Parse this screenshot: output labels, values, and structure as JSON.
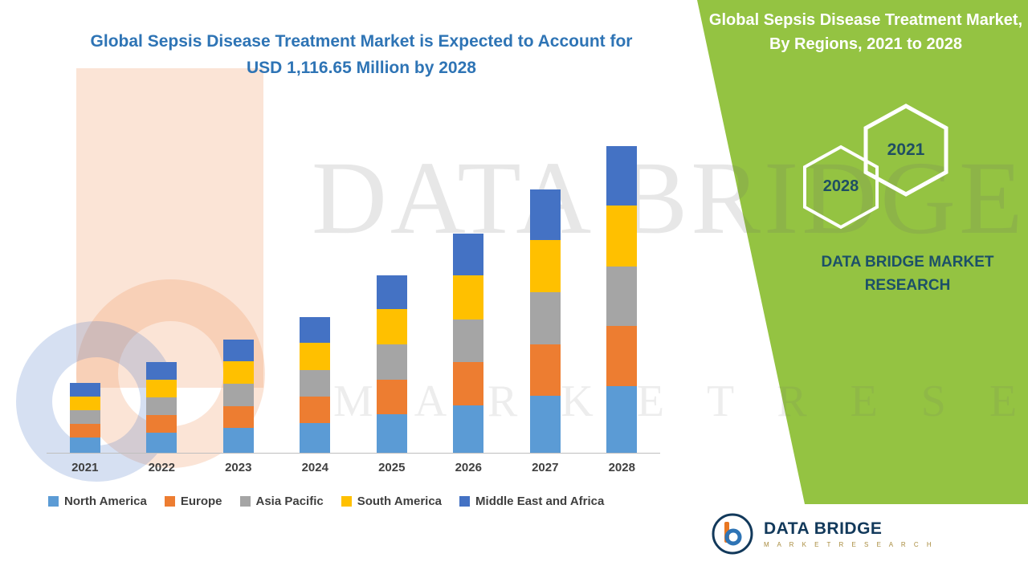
{
  "headline": {
    "line1": "Global Sepsis Disease Treatment Market is Expected to Account for",
    "line2": "USD 1,116.65 Million by 2028",
    "color": "#2E74B5"
  },
  "side_panel": {
    "title": "Global Sepsis Disease Treatment Market, By Regions, 2021 to 2028",
    "badge_start_year": "2021",
    "badge_end_year": "2028",
    "brand_line1": "DATA BRIDGE MARKET",
    "brand_line2": "RESEARCH",
    "bg_color": "#94C342",
    "text_color": "#1C5068"
  },
  "watermark": {
    "line1": "DATA BRIDGE",
    "line2": "M A R K E T   R E S E A R C H"
  },
  "logo": {
    "name": "DATA BRIDGE",
    "subtitle": "M A R K E T   R E S E A R C H"
  },
  "chart_data": {
    "type": "bar",
    "stacked": true,
    "title": "Global Sepsis Disease Treatment Market, By Regions, 2021 to 2028",
    "unit": "USD Million",
    "categories": [
      "2021",
      "2022",
      "2023",
      "2024",
      "2025",
      "2026",
      "2027",
      "2028"
    ],
    "series": [
      {
        "name": "North America",
        "color": "#5B9BD5",
        "values": [
          56,
          72,
          90,
          108,
          140,
          173,
          208,
          242
        ]
      },
      {
        "name": "Europe",
        "color": "#ED7D31",
        "values": [
          50,
          65,
          81,
          97,
          127,
          157,
          188,
          219
        ]
      },
      {
        "name": "Asia Pacific",
        "color": "#A5A5A5",
        "values": [
          49,
          64,
          80,
          96,
          127,
          156,
          188,
          218
        ]
      },
      {
        "name": "South America",
        "color": "#FFC000",
        "values": [
          51,
          66,
          82,
          99,
          129,
          159,
          191,
          222
        ]
      },
      {
        "name": "Middle East and Africa",
        "color": "#4472C4",
        "values": [
          48,
          63,
          79,
          94,
          123,
          153,
          184,
          215.65
        ]
      }
    ],
    "totals": [
      254,
      330,
      412,
      494,
      646,
      798,
      959,
      1116.65
    ],
    "ylim": [
      0,
      1116.65
    ],
    "gridlines": false,
    "legend_position": "bottom",
    "axis_labels_visible": false
  }
}
